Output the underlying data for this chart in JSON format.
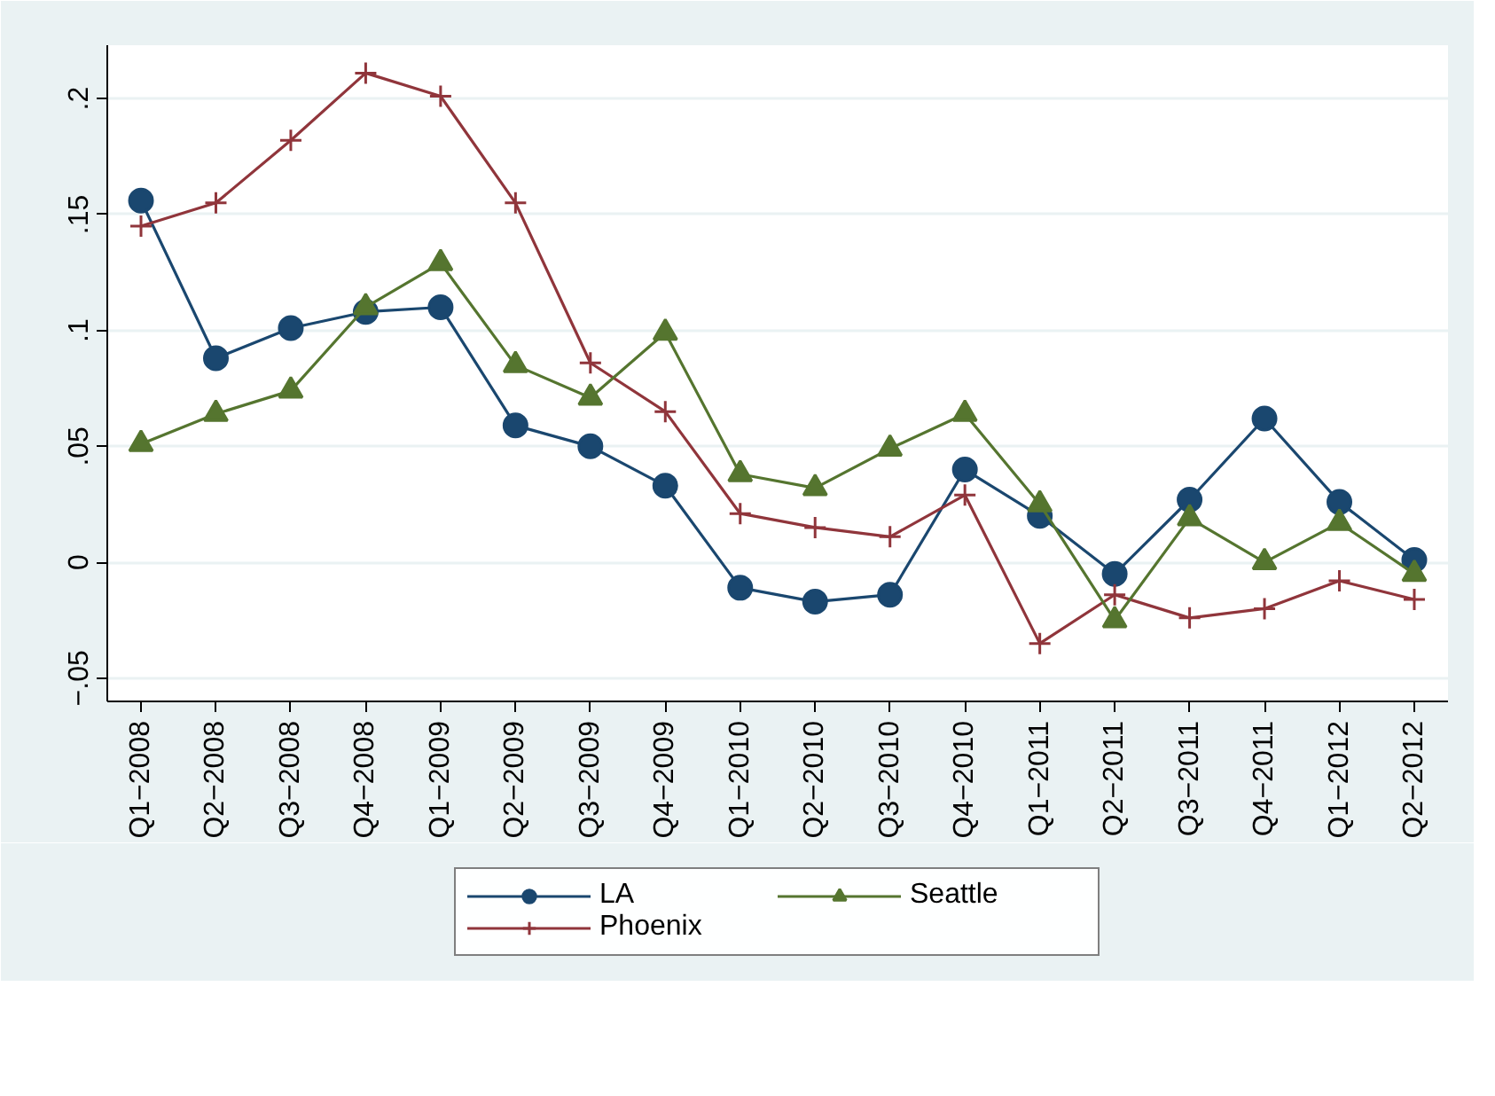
{
  "chart_data": {
    "type": "line",
    "categories": [
      "Q1−2008",
      "Q2−2008",
      "Q3−2008",
      "Q4−2008",
      "Q1−2009",
      "Q2−2009",
      "Q3−2009",
      "Q4−2009",
      "Q1−2010",
      "Q2−2010",
      "Q3−2010",
      "Q4−2010",
      "Q1−2011",
      "Q2−2011",
      "Q3−2011",
      "Q4−2011",
      "Q1−2012",
      "Q2−2012"
    ],
    "series": [
      {
        "name": "LA",
        "color": "#1a476f",
        "marker": "circle",
        "values": [
          0.156,
          0.088,
          0.101,
          0.108,
          0.11,
          0.059,
          0.05,
          0.033,
          -0.011,
          -0.017,
          -0.014,
          0.04,
          0.02,
          -0.005,
          0.027,
          0.062,
          0.026,
          0.001
        ]
      },
      {
        "name": "Phoenix",
        "color": "#90353b",
        "marker": "cross",
        "values": [
          0.145,
          0.155,
          0.182,
          0.211,
          0.201,
          0.155,
          0.086,
          0.065,
          0.021,
          0.015,
          0.011,
          0.029,
          -0.035,
          -0.014,
          -0.024,
          -0.02,
          -0.008,
          -0.016
        ]
      },
      {
        "name": "Seattle",
        "color": "#55752f",
        "marker": "triangle",
        "values": [
          0.051,
          0.064,
          0.074,
          0.11,
          0.129,
          0.085,
          0.071,
          0.099,
          0.038,
          0.032,
          0.049,
          0.064,
          0.025,
          -0.025,
          0.019,
          0.0,
          0.017,
          -0.005
        ]
      }
    ],
    "ylim": [
      -0.06,
      0.223
    ],
    "yticks": [
      {
        "value": -0.05,
        "label": "−.05"
      },
      {
        "value": 0,
        "label": "0"
      },
      {
        "value": 0.05,
        "label": ".05"
      },
      {
        "value": 0.1,
        "label": ".1"
      },
      {
        "value": 0.15,
        "label": ".15"
      },
      {
        "value": 0.2,
        "label": ".2"
      }
    ],
    "grid": "y",
    "legend": "bottom",
    "line_style": "solid"
  }
}
